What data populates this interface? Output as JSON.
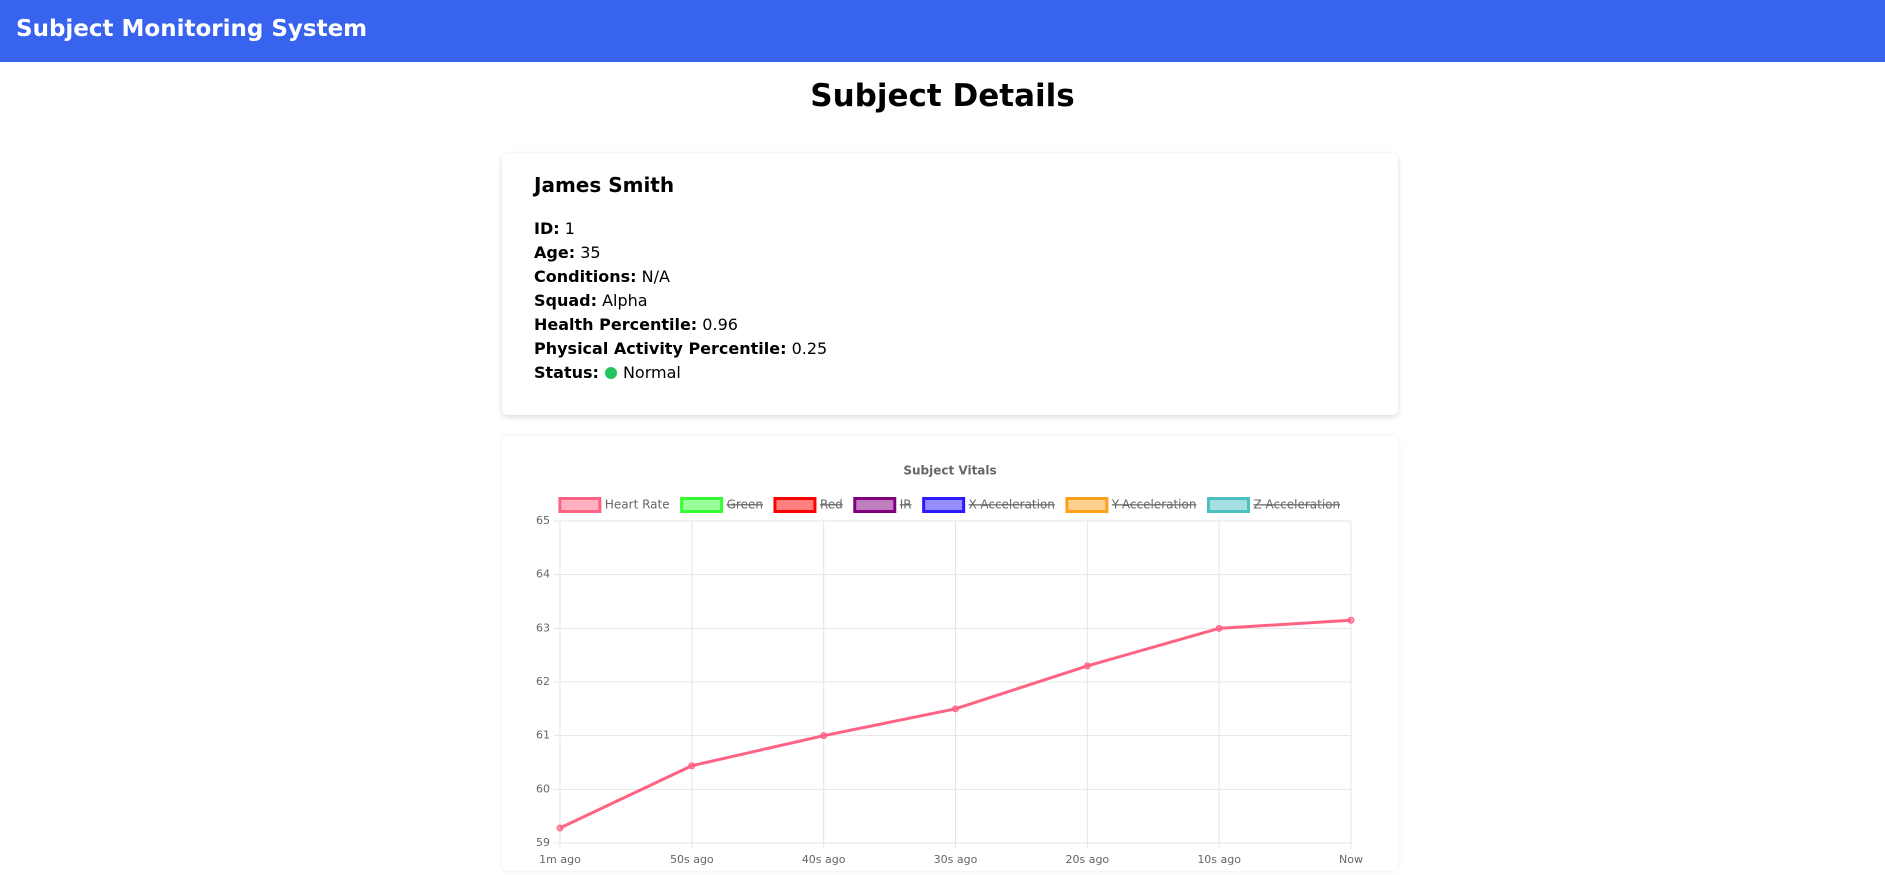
{
  "header": {
    "title": "Subject Monitoring System"
  },
  "page_title": "Subject Details",
  "subject": {
    "name": "James Smith",
    "fields": [
      {
        "label": "ID:",
        "value": "1"
      },
      {
        "label": "Age:",
        "value": "35"
      },
      {
        "label": "Conditions:",
        "value": "N/A"
      },
      {
        "label": "Squad:",
        "value": "Alpha"
      },
      {
        "label": "Health Percentile:",
        "value": "0.96"
      },
      {
        "label": "Physical Activity Percentile:",
        "value": "0.25"
      }
    ],
    "status": {
      "label": "Status:",
      "value": "Normal",
      "color": "#22c55e"
    }
  },
  "chart_data": {
    "type": "line",
    "title": "Subject Vitals",
    "categories": [
      "1m ago",
      "50s ago",
      "40s ago",
      "30s ago",
      "20s ago",
      "10s ago",
      "Now"
    ],
    "series": [
      {
        "name": "Heart Rate",
        "color": "#ff6384",
        "values": [
          59.28,
          60.44,
          61.0,
          61.5,
          62.3,
          63.0,
          63.15
        ]
      },
      {
        "name": "Green",
        "color": "#33ff33",
        "hidden": true
      },
      {
        "name": "Red",
        "color": "#ff0000",
        "hidden": true
      },
      {
        "name": "IR",
        "color": "#800080",
        "hidden": true
      },
      {
        "name": "X-Acceleration",
        "color": "#2a1aff",
        "hidden": true
      },
      {
        "name": "Y-Acceleration",
        "color": "#ff9f1a",
        "hidden": true
      },
      {
        "name": "Z-Acceleration",
        "color": "#4bc0c0",
        "hidden": true
      }
    ],
    "ylim": [
      59,
      65
    ],
    "yticks": [
      59,
      60,
      61,
      62,
      63,
      64,
      65
    ],
    "grid": true
  }
}
